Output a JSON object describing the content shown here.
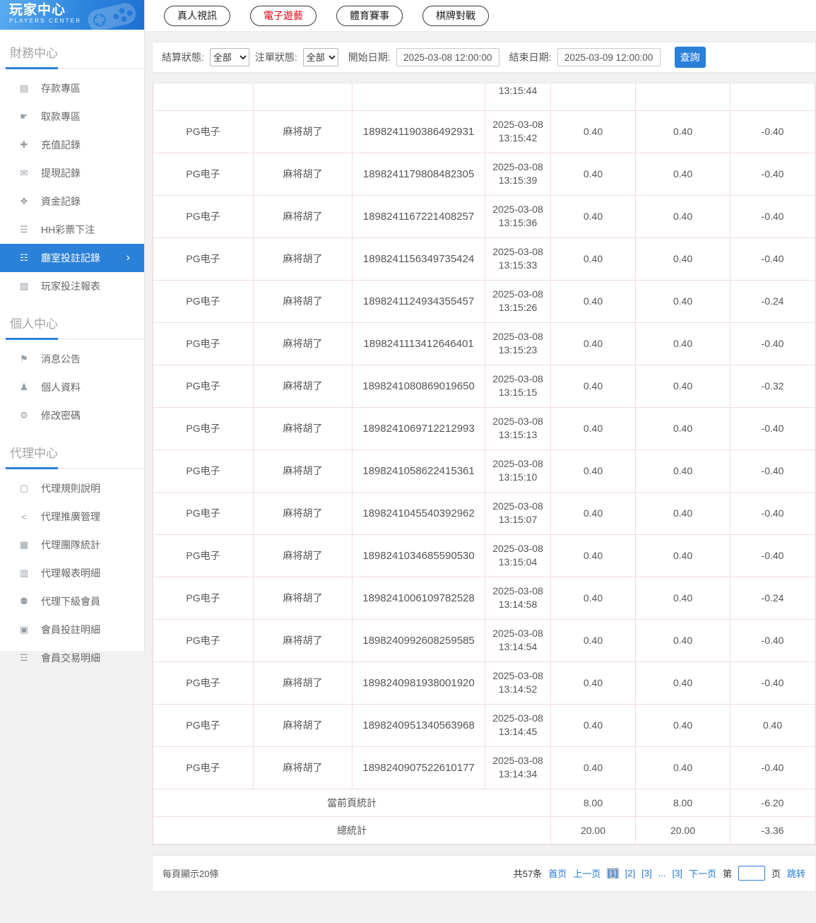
{
  "app": {
    "title": "玩家中心",
    "subtitle": "PLAYERS CENTER"
  },
  "colors": {
    "accent": "#2b80d9",
    "active_tab": "#e60012",
    "link": "#2077d4",
    "cell_border": "#f2dcdc"
  },
  "sidebar": {
    "sections": [
      {
        "title": "財務中心",
        "items": [
          {
            "name": "deposit-area",
            "icon": "bank-card-icon",
            "glyph": "▤",
            "label": "存款專區",
            "active": false
          },
          {
            "name": "withdraw-area",
            "icon": "hand-cash-icon",
            "glyph": "☛",
            "label": "取款專區",
            "active": false
          },
          {
            "name": "recharge-records",
            "icon": "moneybag-icon",
            "glyph": "✚",
            "label": "充值記錄",
            "active": false
          },
          {
            "name": "withdrawal-records",
            "icon": "wallet-icon",
            "glyph": "✉",
            "label": "提現記錄",
            "active": false
          },
          {
            "name": "funds-records",
            "icon": "purse-icon",
            "glyph": "❖",
            "label": "資金記錄",
            "active": false
          },
          {
            "name": "hh-lottery-bets",
            "icon": "document-icon",
            "glyph": "☰",
            "label": "HH彩票下注",
            "active": false
          },
          {
            "name": "room-bet-records",
            "icon": "list-records-icon",
            "glyph": "☷",
            "label": "廳室投註記錄",
            "active": true
          },
          {
            "name": "player-bet-report",
            "icon": "chart-report-icon",
            "glyph": "▨",
            "label": "玩家投注報表",
            "active": false
          }
        ]
      },
      {
        "title": "個人中心",
        "items": [
          {
            "name": "announcements",
            "icon": "bell-icon",
            "glyph": "⚑",
            "label": "消息公告",
            "active": false
          },
          {
            "name": "profile",
            "icon": "person-icon",
            "glyph": "♟",
            "label": "個人資料",
            "active": false
          },
          {
            "name": "change-password",
            "icon": "gear-icon",
            "glyph": "⚙",
            "label": "修改密碼",
            "active": false
          }
        ]
      },
      {
        "title": "代理中心",
        "items": [
          {
            "name": "agent-rules",
            "icon": "doc-page-icon",
            "glyph": "▢",
            "label": "代理規則說明",
            "active": false
          },
          {
            "name": "agent-promotion",
            "icon": "share-icon",
            "glyph": "<",
            "label": "代理推廣管理",
            "active": false
          },
          {
            "name": "agent-team-stats",
            "icon": "stats-grid-icon",
            "glyph": "▦",
            "label": "代理團隊統計",
            "active": false
          },
          {
            "name": "agent-report-detail",
            "icon": "report-sheet-icon",
            "glyph": "▥",
            "label": "代理報表明細",
            "active": false
          },
          {
            "name": "agent-sub-members",
            "icon": "users-icon",
            "glyph": "⚉",
            "label": "代理下級會員",
            "active": false
          },
          {
            "name": "member-bet-detail",
            "icon": "clipboard-icon",
            "glyph": "▣",
            "label": "會員投註明細",
            "active": false
          },
          {
            "name": "member-trans-detail",
            "icon": "ledger-icon",
            "glyph": "☲",
            "label": "會員交易明細",
            "active": false
          }
        ]
      }
    ]
  },
  "tabs": [
    {
      "name": "live-casino",
      "label": "真人視訊",
      "active": false
    },
    {
      "name": "e-games",
      "label": "電子遊藝",
      "active": true
    },
    {
      "name": "sports",
      "label": "體育賽事",
      "active": false
    },
    {
      "name": "board-games",
      "label": "棋牌對戰",
      "active": false
    }
  ],
  "filters": {
    "settle_label": "結算狀態:",
    "settle_value": "全部",
    "order_label": "注單狀態:",
    "order_value": "全部",
    "start_label": "開始日期:",
    "start_value": "2025-03-08 12:00:00",
    "end_label": "結束日期:",
    "end_value": "2025-03-09 12:00:00",
    "query_label": "查詢"
  },
  "table": {
    "partial_row_time": "13:15:44",
    "rows": [
      {
        "platform": "PG电子",
        "game": "麻将胡了",
        "order_id": "1898241190386492931",
        "date": "2025-03-08",
        "time": "13:15:42",
        "bet": "0.40",
        "valid": "0.40",
        "winloss": "-0.40"
      },
      {
        "platform": "PG电子",
        "game": "麻将胡了",
        "order_id": "1898241179808482305",
        "date": "2025-03-08",
        "time": "13:15:39",
        "bet": "0.40",
        "valid": "0.40",
        "winloss": "-0.40"
      },
      {
        "platform": "PG电子",
        "game": "麻将胡了",
        "order_id": "1898241167221408257",
        "date": "2025-03-08",
        "time": "13:15:36",
        "bet": "0.40",
        "valid": "0.40",
        "winloss": "-0.40"
      },
      {
        "platform": "PG电子",
        "game": "麻将胡了",
        "order_id": "1898241156349735424",
        "date": "2025-03-08",
        "time": "13:15:33",
        "bet": "0.40",
        "valid": "0.40",
        "winloss": "-0.40"
      },
      {
        "platform": "PG电子",
        "game": "麻将胡了",
        "order_id": "1898241124934355457",
        "date": "2025-03-08",
        "time": "13:15:26",
        "bet": "0.40",
        "valid": "0.40",
        "winloss": "-0.24"
      },
      {
        "platform": "PG电子",
        "game": "麻将胡了",
        "order_id": "1898241113412646401",
        "date": "2025-03-08",
        "time": "13:15:23",
        "bet": "0.40",
        "valid": "0.40",
        "winloss": "-0.40"
      },
      {
        "platform": "PG电子",
        "game": "麻将胡了",
        "order_id": "1898241080869019650",
        "date": "2025-03-08",
        "time": "13:15:15",
        "bet": "0.40",
        "valid": "0.40",
        "winloss": "-0.32"
      },
      {
        "platform": "PG电子",
        "game": "麻将胡了",
        "order_id": "1898241069712212993",
        "date": "2025-03-08",
        "time": "13:15:13",
        "bet": "0.40",
        "valid": "0.40",
        "winloss": "-0.40"
      },
      {
        "platform": "PG电子",
        "game": "麻将胡了",
        "order_id": "1898241058622415361",
        "date": "2025-03-08",
        "time": "13:15:10",
        "bet": "0.40",
        "valid": "0.40",
        "winloss": "-0.40"
      },
      {
        "platform": "PG电子",
        "game": "麻将胡了",
        "order_id": "1898241045540392962",
        "date": "2025-03-08",
        "time": "13:15:07",
        "bet": "0.40",
        "valid": "0.40",
        "winloss": "-0.40"
      },
      {
        "platform": "PG电子",
        "game": "麻将胡了",
        "order_id": "1898241034685590530",
        "date": "2025-03-08",
        "time": "13:15:04",
        "bet": "0.40",
        "valid": "0.40",
        "winloss": "-0.40"
      },
      {
        "platform": "PG电子",
        "game": "麻将胡了",
        "order_id": "1898241006109782528",
        "date": "2025-03-08",
        "time": "13:14:58",
        "bet": "0.40",
        "valid": "0.40",
        "winloss": "-0.24"
      },
      {
        "platform": "PG电子",
        "game": "麻将胡了",
        "order_id": "1898240992608259585",
        "date": "2025-03-08",
        "time": "13:14:54",
        "bet": "0.40",
        "valid": "0.40",
        "winloss": "-0.40"
      },
      {
        "platform": "PG电子",
        "game": "麻将胡了",
        "order_id": "1898240981938001920",
        "date": "2025-03-08",
        "time": "13:14:52",
        "bet": "0.40",
        "valid": "0.40",
        "winloss": "-0.40"
      },
      {
        "platform": "PG电子",
        "game": "麻将胡了",
        "order_id": "1898240951340563968",
        "date": "2025-03-08",
        "time": "13:14:45",
        "bet": "0.40",
        "valid": "0.40",
        "winloss": "0.40"
      },
      {
        "platform": "PG电子",
        "game": "麻将胡了",
        "order_id": "1898240907522610177",
        "date": "2025-03-08",
        "time": "13:14:34",
        "bet": "0.40",
        "valid": "0.40",
        "winloss": "-0.40"
      }
    ],
    "page_summary": {
      "label": "當前頁統計",
      "bet": "8.00",
      "valid": "8.00",
      "winloss": "-6.20"
    },
    "total_summary": {
      "label": "總統計",
      "bet": "20.00",
      "valid": "20.00",
      "winloss": "-3.36"
    }
  },
  "pagination": {
    "per_page": "每頁顯示20條",
    "total": "共57条",
    "first": "首页",
    "prev": "上一页",
    "pages": [
      {
        "label": "[1]",
        "active": true
      },
      {
        "label": "[2]",
        "active": false
      },
      {
        "label": "[3]",
        "active": false
      },
      {
        "label": "...",
        "active": false
      },
      {
        "label": "[3]",
        "active": false
      }
    ],
    "next": "下一页",
    "jump_prefix": "第",
    "jump_suffix": "页",
    "jump_label": "跳转"
  }
}
